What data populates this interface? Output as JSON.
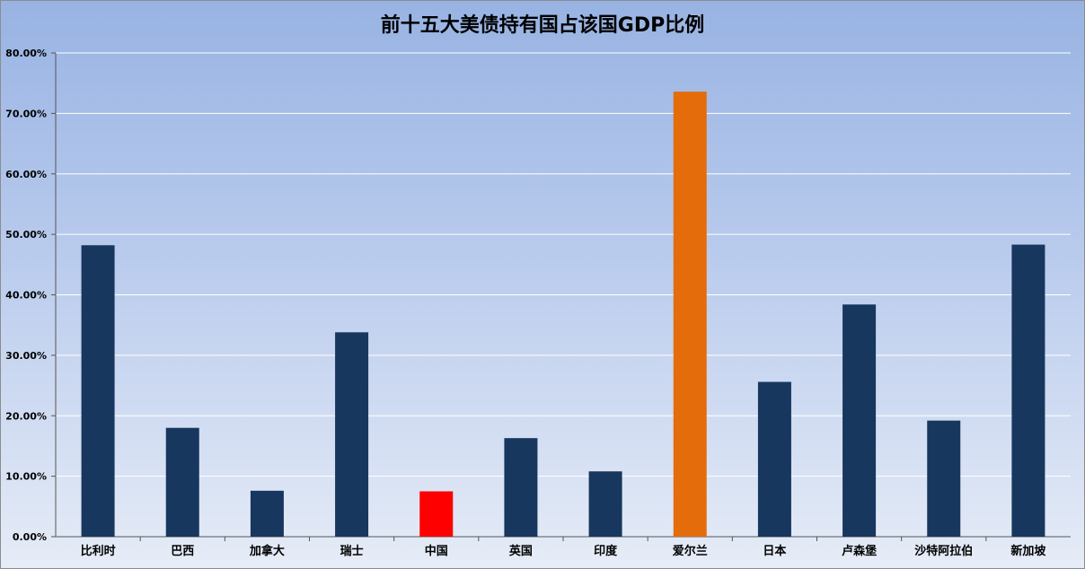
{
  "chart_data": {
    "type": "bar",
    "title": "前十五大美债持有国占该国GDP比例",
    "xlabel": "",
    "ylabel": "",
    "ylim": [
      0,
      80
    ],
    "y_ticks": [
      "0.00%",
      "10.00%",
      "20.00%",
      "30.00%",
      "40.00%",
      "50.00%",
      "60.00%",
      "70.00%",
      "80.00%"
    ],
    "grid": true,
    "categories": [
      "比利时",
      "巴西",
      "加拿大",
      "瑞士",
      "中国",
      "英国",
      "印度",
      "爱尔兰",
      "日本",
      "卢森堡",
      "沙特阿拉伯",
      "新加坡"
    ],
    "values": [
      48.2,
      18.0,
      7.6,
      33.8,
      7.5,
      16.3,
      10.8,
      73.6,
      25.6,
      38.4,
      19.2,
      48.3
    ],
    "bar_colors": [
      "#17375e",
      "#17375e",
      "#17375e",
      "#17375e",
      "#ff0000",
      "#17375e",
      "#17375e",
      "#e46c0a",
      "#17375e",
      "#17375e",
      "#17375e",
      "#17375e"
    ]
  }
}
